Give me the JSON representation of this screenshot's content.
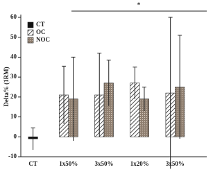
{
  "chart_data": {
    "type": "bar",
    "y_label": "Delta% (1RM)",
    "annotation": "*",
    "categories": [
      "CT",
      "1x50%",
      "3x50%",
      "1x20%",
      "3x50%"
    ],
    "series": [
      {
        "name": "CT",
        "color": "#111111",
        "hatch": "solid",
        "values": [
          -1,
          null,
          null,
          null,
          null
        ],
        "errors": [
          5.5,
          null,
          null,
          null,
          null
        ]
      },
      {
        "name": "OC",
        "color": "#222222",
        "hatch": "diagonal",
        "values": [
          null,
          21,
          21,
          27,
          22
        ],
        "errors": [
          null,
          14.5,
          21,
          8,
          38
        ]
      },
      {
        "name": "NOC",
        "color": "#8f7f70",
        "hatch": "dots",
        "values": [
          null,
          19,
          27,
          19,
          25
        ],
        "errors": [
          null,
          21,
          11.5,
          6,
          26
        ]
      }
    ],
    "ylim": [
      -10,
      60
    ],
    "yticks": [
      -10,
      0,
      10,
      20,
      30,
      40,
      50,
      60
    ],
    "legend": "upper left"
  }
}
